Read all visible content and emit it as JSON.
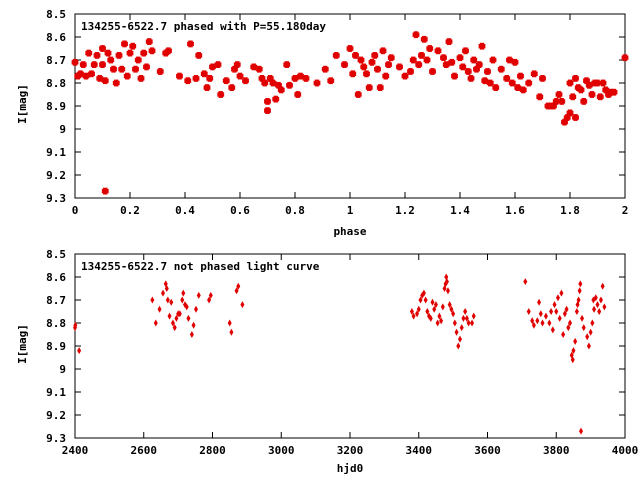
{
  "chart_data": [
    {
      "type": "scatter",
      "title": "134255-6522.7 phased with P=55.180day",
      "xlabel": "phase",
      "ylabel": "I[mag]",
      "xlim": [
        0,
        2
      ],
      "ylim": [
        8.5,
        9.3
      ],
      "y_inverted": true,
      "xticks": [
        "0",
        "0.2",
        "0.4",
        "0.6",
        "0.8",
        "1",
        "1.2",
        "1.4",
        "1.6",
        "1.8",
        "2"
      ],
      "yticks": [
        "8.5",
        "8.6",
        "8.7",
        "8.8",
        "8.9",
        "9",
        "9.1",
        "9.2",
        "9.3"
      ],
      "color": "#e00000",
      "marker": "star",
      "grid": false,
      "points": [
        [
          0.0,
          8.71
        ],
        [
          0.01,
          8.77
        ],
        [
          0.02,
          8.76
        ],
        [
          0.03,
          8.72
        ],
        [
          0.04,
          8.77
        ],
        [
          0.05,
          8.67
        ],
        [
          0.06,
          8.76
        ],
        [
          0.07,
          8.72
        ],
        [
          0.08,
          8.68
        ],
        [
          0.09,
          8.78
        ],
        [
          0.1,
          8.65
        ],
        [
          0.1,
          8.72
        ],
        [
          0.11,
          8.79
        ],
        [
          0.11,
          9.27
        ],
        [
          0.12,
          8.67
        ],
        [
          0.13,
          8.7
        ],
        [
          0.14,
          8.74
        ],
        [
          0.15,
          8.8
        ],
        [
          0.16,
          8.68
        ],
        [
          0.17,
          8.74
        ],
        [
          0.18,
          8.63
        ],
        [
          0.19,
          8.77
        ],
        [
          0.2,
          8.67
        ],
        [
          0.21,
          8.64
        ],
        [
          0.22,
          8.74
        ],
        [
          0.23,
          8.7
        ],
        [
          0.24,
          8.78
        ],
        [
          0.25,
          8.67
        ],
        [
          0.26,
          8.73
        ],
        [
          0.27,
          8.62
        ],
        [
          0.28,
          8.66
        ],
        [
          0.31,
          8.75
        ],
        [
          0.33,
          8.67
        ],
        [
          0.34,
          8.66
        ],
        [
          0.38,
          8.77
        ],
        [
          0.41,
          8.79
        ],
        [
          0.42,
          8.63
        ],
        [
          0.44,
          8.78
        ],
        [
          0.45,
          8.68
        ],
        [
          0.47,
          8.76
        ],
        [
          0.48,
          8.82
        ],
        [
          0.49,
          8.78
        ],
        [
          0.5,
          8.73
        ],
        [
          0.52,
          8.72
        ],
        [
          0.53,
          8.85
        ],
        [
          0.55,
          8.79
        ],
        [
          0.57,
          8.82
        ],
        [
          0.58,
          8.74
        ],
        [
          0.59,
          8.72
        ],
        [
          0.6,
          8.77
        ],
        [
          0.62,
          8.79
        ],
        [
          0.65,
          8.73
        ],
        [
          0.67,
          8.74
        ],
        [
          0.68,
          8.78
        ],
        [
          0.69,
          8.8
        ],
        [
          0.7,
          8.88
        ],
        [
          0.7,
          8.92
        ],
        [
          0.71,
          8.78
        ],
        [
          0.72,
          8.8
        ],
        [
          0.73,
          8.87
        ],
        [
          0.74,
          8.81
        ],
        [
          0.75,
          8.83
        ],
        [
          0.77,
          8.72
        ],
        [
          0.78,
          8.81
        ],
        [
          0.8,
          8.78
        ],
        [
          0.81,
          8.85
        ],
        [
          0.82,
          8.77
        ],
        [
          0.84,
          8.78
        ],
        [
          0.88,
          8.8
        ],
        [
          0.91,
          8.74
        ],
        [
          0.93,
          8.79
        ],
        [
          0.95,
          8.68
        ],
        [
          0.98,
          8.72
        ],
        [
          1.0,
          8.65
        ],
        [
          1.01,
          8.76
        ],
        [
          1.02,
          8.68
        ],
        [
          1.03,
          8.85
        ],
        [
          1.04,
          8.7
        ],
        [
          1.05,
          8.73
        ],
        [
          1.06,
          8.76
        ],
        [
          1.07,
          8.82
        ],
        [
          1.08,
          8.71
        ],
        [
          1.09,
          8.68
        ],
        [
          1.1,
          8.74
        ],
        [
          1.11,
          8.82
        ],
        [
          1.12,
          8.66
        ],
        [
          1.13,
          8.77
        ],
        [
          1.14,
          8.72
        ],
        [
          1.15,
          8.69
        ],
        [
          1.18,
          8.73
        ],
        [
          1.2,
          8.77
        ],
        [
          1.22,
          8.75
        ],
        [
          1.23,
          8.7
        ],
        [
          1.24,
          8.59
        ],
        [
          1.25,
          8.72
        ],
        [
          1.26,
          8.68
        ],
        [
          1.27,
          8.61
        ],
        [
          1.28,
          8.7
        ],
        [
          1.29,
          8.65
        ],
        [
          1.3,
          8.75
        ],
        [
          1.32,
          8.66
        ],
        [
          1.34,
          8.69
        ],
        [
          1.35,
          8.72
        ],
        [
          1.36,
          8.62
        ],
        [
          1.37,
          8.71
        ],
        [
          1.38,
          8.77
        ],
        [
          1.4,
          8.69
        ],
        [
          1.41,
          8.73
        ],
        [
          1.42,
          8.66
        ],
        [
          1.43,
          8.75
        ],
        [
          1.44,
          8.78
        ],
        [
          1.45,
          8.7
        ],
        [
          1.46,
          8.74
        ],
        [
          1.47,
          8.72
        ],
        [
          1.48,
          8.64
        ],
        [
          1.49,
          8.79
        ],
        [
          1.5,
          8.75
        ],
        [
          1.51,
          8.8
        ],
        [
          1.52,
          8.7
        ],
        [
          1.53,
          8.82
        ],
        [
          1.55,
          8.74
        ],
        [
          1.57,
          8.78
        ],
        [
          1.58,
          8.7
        ],
        [
          1.59,
          8.8
        ],
        [
          1.6,
          8.71
        ],
        [
          1.61,
          8.82
        ],
        [
          1.62,
          8.77
        ],
        [
          1.63,
          8.83
        ],
        [
          1.65,
          8.8
        ],
        [
          1.67,
          8.76
        ],
        [
          1.69,
          8.86
        ],
        [
          1.7,
          8.78
        ],
        [
          1.72,
          8.9
        ],
        [
          1.73,
          8.9
        ],
        [
          1.74,
          8.9
        ],
        [
          1.75,
          8.88
        ],
        [
          1.76,
          8.85
        ],
        [
          1.77,
          8.88
        ],
        [
          1.78,
          8.97
        ],
        [
          1.79,
          8.95
        ],
        [
          1.8,
          8.8
        ],
        [
          1.8,
          8.93
        ],
        [
          1.81,
          8.86
        ],
        [
          1.82,
          8.95
        ],
        [
          1.82,
          8.78
        ],
        [
          1.83,
          8.82
        ],
        [
          1.84,
          8.83
        ],
        [
          1.85,
          8.88
        ],
        [
          1.86,
          8.79
        ],
        [
          1.87,
          8.81
        ],
        [
          1.88,
          8.85
        ],
        [
          1.89,
          8.8
        ],
        [
          1.9,
          8.8
        ],
        [
          1.91,
          8.86
        ],
        [
          1.92,
          8.8
        ],
        [
          1.93,
          8.83
        ],
        [
          1.94,
          8.85
        ],
        [
          1.95,
          8.84
        ],
        [
          1.96,
          8.84
        ],
        [
          2.0,
          8.69
        ]
      ]
    },
    {
      "type": "scatter",
      "title": "134255-6522.7 not phased light curve",
      "xlabel": "hjd0",
      "ylabel": "I[mag]",
      "xlim": [
        2400,
        4000
      ],
      "ylim": [
        8.5,
        9.3
      ],
      "y_inverted": true,
      "xticks": [
        "2400",
        "2600",
        "2800",
        "3000",
        "3200",
        "3400",
        "3600",
        "3800",
        "4000"
      ],
      "yticks": [
        "8.5",
        "8.6",
        "8.7",
        "8.8",
        "8.9",
        "9",
        "9.1",
        "9.2",
        "9.3"
      ],
      "color": "#e00000",
      "marker": "diamond",
      "grid": false,
      "points": [
        [
          2400,
          8.82
        ],
        [
          2401,
          8.81
        ],
        [
          2412,
          8.92
        ],
        [
          2625,
          8.7
        ],
        [
          2635,
          8.8
        ],
        [
          2646,
          8.74
        ],
        [
          2656,
          8.67
        ],
        [
          2664,
          8.63
        ],
        [
          2667,
          8.65
        ],
        [
          2670,
          8.7
        ],
        [
          2675,
          8.77
        ],
        [
          2680,
          8.71
        ],
        [
          2685,
          8.8
        ],
        [
          2690,
          8.82
        ],
        [
          2695,
          8.78
        ],
        [
          2700,
          8.76
        ],
        [
          2705,
          8.76
        ],
        [
          2712,
          8.7
        ],
        [
          2715,
          8.67
        ],
        [
          2720,
          8.72
        ],
        [
          2725,
          8.73
        ],
        [
          2730,
          8.78
        ],
        [
          2740,
          8.85
        ],
        [
          2745,
          8.81
        ],
        [
          2752,
          8.74
        ],
        [
          2760,
          8.68
        ],
        [
          2790,
          8.7
        ],
        [
          2795,
          8.68
        ],
        [
          2850,
          8.8
        ],
        [
          2855,
          8.84
        ],
        [
          2870,
          8.66
        ],
        [
          2875,
          8.64
        ],
        [
          2887,
          8.72
        ],
        [
          3380,
          8.75
        ],
        [
          3385,
          8.77
        ],
        [
          3395,
          8.76
        ],
        [
          3400,
          8.74
        ],
        [
          3405,
          8.7
        ],
        [
          3410,
          8.68
        ],
        [
          3415,
          8.67
        ],
        [
          3420,
          8.7
        ],
        [
          3425,
          8.75
        ],
        [
          3430,
          8.77
        ],
        [
          3435,
          8.78
        ],
        [
          3440,
          8.71
        ],
        [
          3445,
          8.74
        ],
        [
          3450,
          8.72
        ],
        [
          3455,
          8.8
        ],
        [
          3460,
          8.77
        ],
        [
          3465,
          8.79
        ],
        [
          3470,
          8.73
        ],
        [
          3475,
          8.65
        ],
        [
          3478,
          8.63
        ],
        [
          3480,
          8.6
        ],
        [
          3482,
          8.62
        ],
        [
          3485,
          8.66
        ],
        [
          3490,
          8.72
        ],
        [
          3495,
          8.74
        ],
        [
          3500,
          8.76
        ],
        [
          3505,
          8.8
        ],
        [
          3510,
          8.84
        ],
        [
          3515,
          8.9
        ],
        [
          3520,
          8.87
        ],
        [
          3525,
          8.82
        ],
        [
          3530,
          8.78
        ],
        [
          3535,
          8.75
        ],
        [
          3540,
          8.78
        ],
        [
          3545,
          8.8
        ],
        [
          3555,
          8.8
        ],
        [
          3560,
          8.77
        ],
        [
          3710,
          8.62
        ],
        [
          3720,
          8.75
        ],
        [
          3730,
          8.79
        ],
        [
          3735,
          8.81
        ],
        [
          3745,
          8.79
        ],
        [
          3750,
          8.71
        ],
        [
          3755,
          8.76
        ],
        [
          3760,
          8.8
        ],
        [
          3770,
          8.77
        ],
        [
          3780,
          8.8
        ],
        [
          3785,
          8.75
        ],
        [
          3790,
          8.83
        ],
        [
          3795,
          8.72
        ],
        [
          3800,
          8.75
        ],
        [
          3805,
          8.69
        ],
        [
          3810,
          8.78
        ],
        [
          3815,
          8.67
        ],
        [
          3820,
          8.85
        ],
        [
          3825,
          8.76
        ],
        [
          3830,
          8.74
        ],
        [
          3835,
          8.82
        ],
        [
          3840,
          8.8
        ],
        [
          3845,
          8.94
        ],
        [
          3848,
          8.96
        ],
        [
          3850,
          8.92
        ],
        [
          3855,
          8.88
        ],
        [
          3860,
          8.75
        ],
        [
          3862,
          8.72
        ],
        [
          3865,
          8.7
        ],
        [
          3868,
          8.66
        ],
        [
          3870,
          8.63
        ],
        [
          3872,
          9.27
        ],
        [
          3875,
          8.78
        ],
        [
          3880,
          8.82
        ],
        [
          3890,
          8.86
        ],
        [
          3895,
          8.9
        ],
        [
          3900,
          8.84
        ],
        [
          3905,
          8.8
        ],
        [
          3908,
          8.7
        ],
        [
          3910,
          8.74
        ],
        [
          3915,
          8.69
        ],
        [
          3920,
          8.72
        ],
        [
          3925,
          8.75
        ],
        [
          3930,
          8.7
        ],
        [
          3935,
          8.64
        ],
        [
          3940,
          8.73
        ]
      ]
    }
  ]
}
